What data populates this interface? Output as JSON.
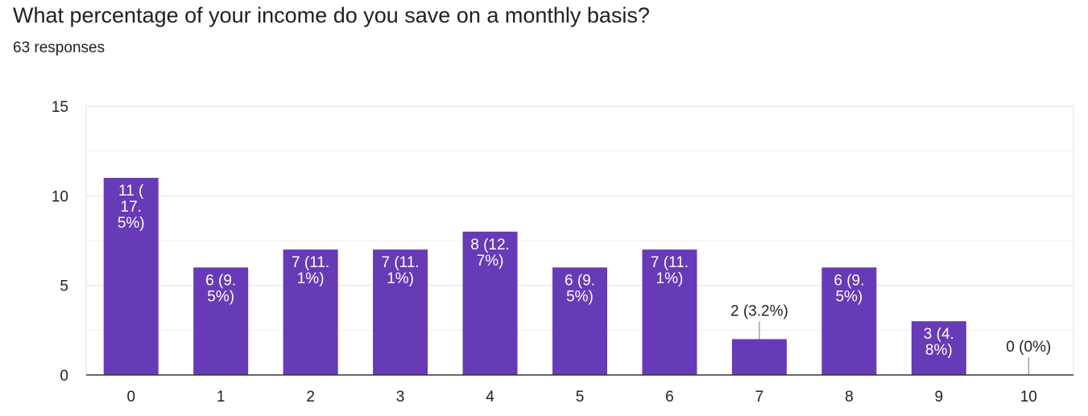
{
  "question": {
    "title": "What percentage of your income do you save on a monthly basis?",
    "responses": "63 responses"
  },
  "colors": {
    "bar": "#673ab7",
    "grid": "#e8e8e8",
    "axis": "#333333",
    "label_inside": "#ffffff",
    "label_outside": "#202124"
  },
  "chart_data": {
    "type": "bar",
    "categories": [
      "0",
      "1",
      "2",
      "3",
      "4",
      "5",
      "6",
      "7",
      "8",
      "9",
      "10"
    ],
    "values": [
      11,
      6,
      7,
      7,
      8,
      6,
      7,
      2,
      6,
      3,
      0
    ],
    "data_labels": [
      [
        "11 (",
        "17.",
        "5%)"
      ],
      [
        "6 (9.",
        "5%)"
      ],
      [
        "7 (11.",
        "1%)"
      ],
      [
        "7 (11.",
        "1%)"
      ],
      [
        "8 (12.",
        "7%)"
      ],
      [
        "6 (9.",
        "5%)"
      ],
      [
        "7 (11.",
        "1%)"
      ],
      [
        "2 (3.2%)"
      ],
      [
        "6 (9.",
        "5%)"
      ],
      [
        "3 (4.",
        "8%)"
      ],
      [
        "0 (0%)"
      ]
    ],
    "label_outside": [
      false,
      false,
      false,
      false,
      false,
      false,
      false,
      true,
      false,
      false,
      true
    ],
    "ylim": [
      0,
      15
    ],
    "yticks": [
      "0",
      "5",
      "10",
      "15"
    ],
    "grid": true,
    "xlabel": "",
    "ylabel": ""
  }
}
